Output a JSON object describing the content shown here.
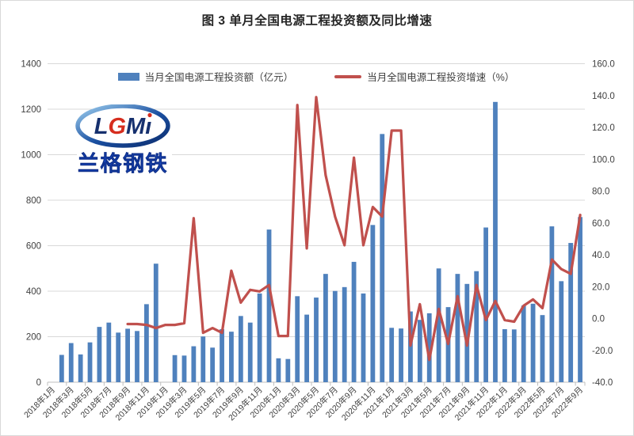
{
  "title": "图 3 单月全国电源工程投资额及同比增速",
  "legend": {
    "bar_label": "当月全国电源工程投资额（亿元）",
    "line_label": "当月全国电源工程投资增速（%）"
  },
  "watermark": {
    "logo_text": "LGMı",
    "company": "兰格钢铁"
  },
  "colors": {
    "bar": "#4F81BD",
    "line": "#C0504D",
    "grid": "#D9D9D9",
    "axis_line": "#BFBFBF",
    "axis_text": "#404040",
    "title_text": "#262626",
    "logo_blue": "#1B50CC",
    "logo_red": "#D62D1E",
    "logo_navy": "#16306E"
  },
  "chart_data": {
    "type": "bar",
    "title": "图 3 单月全国电源工程投资额及同比增速",
    "legend_position": "top",
    "grid": "horizontal",
    "categories": [
      "2018年1月",
      "2018年2月",
      "2018年3月",
      "2018年4月",
      "2018年5月",
      "2018年6月",
      "2018年7月",
      "2018年8月",
      "2018年9月",
      "2018年10月",
      "2018年11月",
      "2018年12月",
      "2019年1月",
      "2019年2月",
      "2019年3月",
      "2019年4月",
      "2019年5月",
      "2019年6月",
      "2019年7月",
      "2019年8月",
      "2019年9月",
      "2019年10月",
      "2019年11月",
      "2019年12月",
      "2020年1月",
      "2020年2月",
      "2020年3月",
      "2020年4月",
      "2020年5月",
      "2020年6月",
      "2020年7月",
      "2020年8月",
      "2020年9月",
      "2020年10月",
      "2020年11月",
      "2020年12月",
      "2021年1月",
      "2021年2月",
      "2021年3月",
      "2021年4月",
      "2021年5月",
      "2021年6月",
      "2021年7月",
      "2021年8月",
      "2021年9月",
      "2021年10月",
      "2021年11月",
      "2021年12月",
      "2022年1月",
      "2022年2月",
      "2022年3月",
      "2022年4月",
      "2022年5月",
      "2022年6月",
      "2022年7月",
      "2022年8月",
      "2022年9月"
    ],
    "series": [
      {
        "name": "当月全国电源工程投资额（亿元）",
        "type": "bar",
        "axis": "left",
        "values": [
          null,
          120,
          172,
          122,
          175,
          243,
          262,
          218,
          235,
          225,
          343,
          521,
          null,
          119,
          117,
          158,
          201,
          152,
          233,
          222,
          291,
          262,
          390,
          671,
          105,
          102,
          378,
          297,
          372,
          476,
          401,
          418,
          529,
          390,
          691,
          1091,
          239,
          236,
          311,
          274,
          303,
          500,
          330,
          476,
          432,
          488,
          680,
          1232,
          233,
          232,
          337,
          345,
          295,
          685,
          444,
          612,
          726
        ]
      },
      {
        "name": "当月全国电源工程投资增速（%）",
        "type": "line",
        "axis": "right",
        "values": [
          null,
          null,
          null,
          null,
          null,
          null,
          null,
          null,
          -3.5,
          -3.5,
          -4,
          -6,
          -4,
          -4,
          -3,
          63,
          -9,
          -6,
          -9,
          30,
          10,
          18,
          17,
          21,
          -11,
          -11,
          134,
          44,
          139,
          90,
          64,
          46,
          101,
          46,
          70,
          64,
          118,
          118,
          -17,
          9,
          -26,
          6,
          -16,
          14,
          -17,
          21,
          -1,
          11,
          -1,
          -2,
          8,
          12,
          6.5,
          37,
          31,
          28,
          65
        ]
      }
    ],
    "left_axis": {
      "min": 0,
      "max": 1400,
      "step": 200,
      "ticks": [
        0,
        200,
        400,
        600,
        800,
        1000,
        1200,
        1400
      ]
    },
    "right_axis": {
      "min": -40,
      "max": 160,
      "step": 20,
      "ticks": [
        -40,
        -20,
        0,
        20,
        40,
        60,
        80,
        100,
        120,
        140,
        160
      ],
      "decimals": 1
    },
    "x_tick_interval": 2,
    "x_tick_labels": [
      "2018年1月",
      "2018年3月",
      "2018年5月",
      "2018年7月",
      "2018年9月",
      "2018年11月",
      "2019年1月",
      "2019年3月",
      "2019年5月",
      "2019年7月",
      "2019年9月",
      "2019年11月",
      "2020年1月",
      "2020年3月",
      "2020年5月",
      "2020年7月",
      "2020年9月",
      "2020年11月",
      "2021年1月",
      "2021年3月",
      "2021年5月",
      "2021年7月",
      "2021年9月",
      "2021年11月",
      "2022年1月",
      "2022年3月",
      "2022年5月",
      "2022年7月",
      "2022年9月"
    ]
  }
}
